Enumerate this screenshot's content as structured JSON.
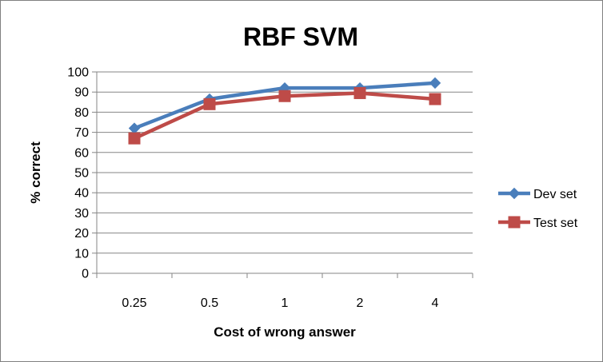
{
  "chart_data": {
    "type": "line",
    "title": "RBF SVM",
    "xlabel": "Cost of wrong answer",
    "ylabel": "% correct",
    "categories": [
      "0.25",
      "0.5",
      "1",
      "2",
      "4"
    ],
    "ylim": [
      0,
      100
    ],
    "yticks": [
      "0",
      "10",
      "20",
      "30",
      "40",
      "50",
      "60",
      "70",
      "80",
      "90",
      "100"
    ],
    "grid": true,
    "legend_position": "right",
    "series": [
      {
        "name": "Dev set",
        "values": [
          72,
          86.5,
          92,
          92,
          94.5
        ],
        "color": "#4a7ebb",
        "marker": "diamond"
      },
      {
        "name": "Test set",
        "values": [
          67,
          84,
          88,
          89.5,
          86.5
        ],
        "color": "#be4b48",
        "marker": "square"
      }
    ]
  }
}
